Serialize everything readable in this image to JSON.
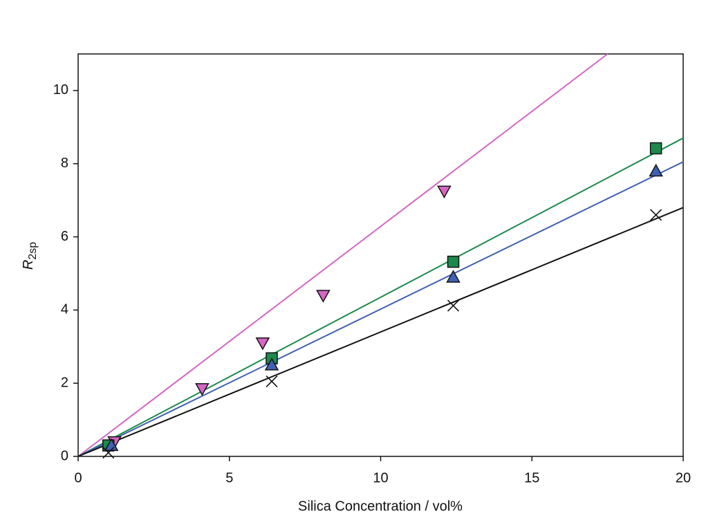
{
  "chart_data": {
    "type": "scatter",
    "xlabel": "Silica Concentration / vol%",
    "ylabel": [
      "R",
      "2sp"
    ],
    "xlim": [
      0,
      20
    ],
    "xticks": [
      0,
      5,
      10,
      15,
      20
    ],
    "ylim": [
      0,
      11
    ],
    "yticks": [
      0,
      2,
      4,
      6,
      8,
      10
    ],
    "series": [
      {
        "color": "#d466c4",
        "marker": "triangle-down",
        "x": [
          1.2,
          4.1,
          6.1,
          8.1,
          12.1
        ],
        "values": [
          0.4,
          1.85,
          3.1,
          4.4,
          7.25
        ],
        "fit_x": [
          0,
          17.5
        ],
        "fit_y": [
          0,
          11
        ]
      },
      {
        "color": "#1b8a4c",
        "marker": "square",
        "x": [
          1.0,
          6.4,
          12.4,
          19.1
        ],
        "values": [
          0.3,
          2.68,
          5.32,
          8.42
        ],
        "fit_x": [
          0,
          20
        ],
        "fit_y": [
          0,
          8.7
        ]
      },
      {
        "color": "#4060b4",
        "marker": "triangle-up",
        "x": [
          1.1,
          6.4,
          12.4,
          19.1
        ],
        "values": [
          0.3,
          2.5,
          4.9,
          7.8
        ],
        "fit_x": [
          0,
          20
        ],
        "fit_y": [
          0,
          8.05
        ]
      },
      {
        "color": "#111111",
        "marker": "x",
        "x": [
          1.0,
          6.4,
          12.4,
          19.1
        ],
        "values": [
          0.1,
          2.05,
          4.12,
          6.6
        ],
        "fit_x": [
          0,
          20
        ],
        "fit_y": [
          0,
          6.8
        ]
      }
    ]
  }
}
